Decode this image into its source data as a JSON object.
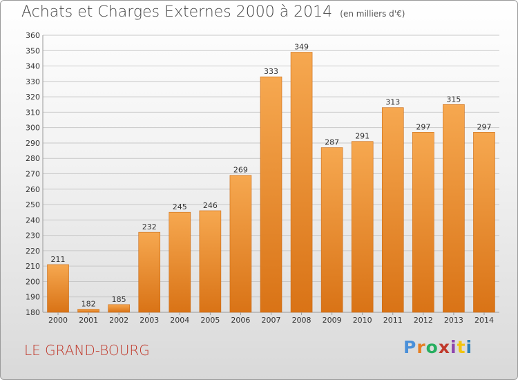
{
  "title": "Achats et Charges Externes 2000 à 2014",
  "unit": "(en milliers d'€)",
  "place_label": "LE GRAND-BOURG",
  "logo": {
    "text": "Proxiti",
    "letters": [
      "P",
      "r",
      "o",
      "x",
      "i",
      "t",
      "i"
    ],
    "colors": [
      "#4a90d9",
      "#e67e22",
      "#27ae60",
      "#c0392b",
      "#8e44ad",
      "#f1c40f",
      "#2980b9"
    ]
  },
  "colors": {
    "bar_top": "#f6a850",
    "bar_bottom": "#d97316",
    "bar_edge": "#c96a14",
    "grid": "#c8c8c8",
    "axis_text": "#333333",
    "title": "#444444"
  },
  "chart_data": {
    "type": "bar",
    "categories": [
      "2000",
      "2001",
      "2002",
      "2003",
      "2004",
      "2005",
      "2006",
      "2007",
      "2008",
      "2009",
      "2010",
      "2011",
      "2012",
      "2013",
      "2014"
    ],
    "values": [
      211,
      182,
      185,
      232,
      245,
      246,
      269,
      333,
      349,
      287,
      291,
      313,
      297,
      315,
      297
    ],
    "data_labels": [
      "211",
      "182",
      "185",
      "232",
      "245",
      "246",
      "269",
      "333",
      "349",
      "287",
      "291",
      "313",
      "297",
      "315",
      "297"
    ],
    "ylim": [
      180,
      360
    ],
    "yticks": [
      180,
      190,
      200,
      210,
      220,
      230,
      240,
      250,
      260,
      270,
      280,
      290,
      300,
      310,
      320,
      330,
      340,
      350,
      360
    ],
    "grid": true,
    "legend": "none"
  }
}
